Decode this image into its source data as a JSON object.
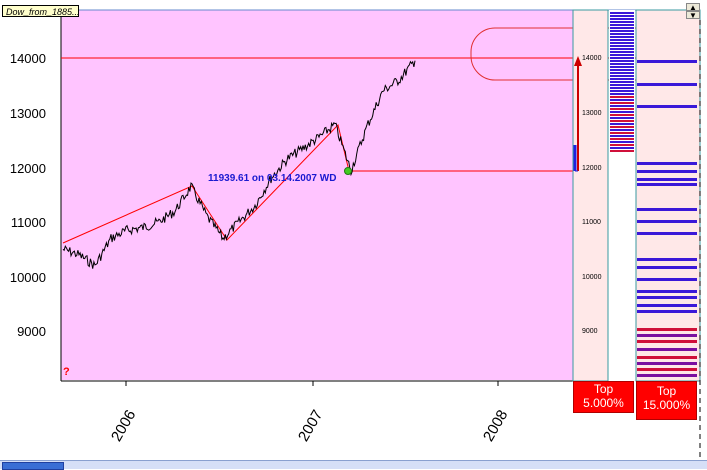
{
  "window": {
    "tab_label": "Dow_from_1885..."
  },
  "scroll": {
    "up_icon": "▲",
    "down_icon": "▼"
  },
  "main_chart": {
    "y_ticks": [
      "14000",
      "13000",
      "12000",
      "11000",
      "10000",
      "9000"
    ],
    "x_ticks": [
      "2006",
      "2007",
      "2008"
    ],
    "question_mark": "?",
    "annotation": "11939.61 on 03.14.2007 WD"
  },
  "profile_panel": {
    "y_ticks": [
      "14000",
      "13000",
      "12000",
      "11000",
      "10000",
      "9000"
    ],
    "top_left": {
      "label": "Top",
      "value": "5.000%"
    },
    "top_right": {
      "label": "Top",
      "value": "15.000%"
    }
  },
  "colors": {
    "chart_background": "#ffc4ff",
    "panel_background": "#ffe8e8",
    "price_line": "#000000",
    "trend_line": "#ff0000",
    "annotation": "#1a1ad0",
    "bar_blue": "#3a18d8",
    "bar_purple": "#7a10a0",
    "bar_red": "#d0103a",
    "top_box": "#ff0000"
  },
  "chart_data": {
    "type": "line",
    "title": "",
    "xlabel": "",
    "ylabel": "",
    "ylim": [
      8200,
      14800
    ],
    "x_ticks": [
      "2006",
      "2007",
      "2008"
    ],
    "series": [
      {
        "x": [
          "2005-09",
          "2005-10",
          "2005-11",
          "2005-12",
          "2006-01",
          "2006-02",
          "2006-03",
          "2006-04",
          "2006-05",
          "2006-06",
          "2006-07",
          "2006-08",
          "2006-09",
          "2006-10",
          "2006-11",
          "2006-12",
          "2007-01",
          "2007-02",
          "2007-03",
          "2007-04",
          "2007-05",
          "2007-06",
          "2007-07"
        ],
        "values": [
          10500,
          10400,
          10200,
          10700,
          10850,
          10900,
          11000,
          11200,
          11650,
          11100,
          10700,
          11000,
          11300,
          11800,
          12150,
          12350,
          12550,
          12780,
          11940,
          12750,
          13400,
          13600,
          13950
        ]
      }
    ],
    "trend_lines": [
      {
        "from": [
          "2005-09",
          10600
        ],
        "to": [
          "2006-05",
          11650
        ]
      },
      {
        "from": [
          "2006-05",
          11650
        ],
        "to": [
          "2006-07",
          10700
        ]
      },
      {
        "from": [
          "2006-07",
          10700
        ],
        "to": [
          "2007-02",
          12780
        ]
      },
      {
        "from": [
          "2007-02",
          12780
        ],
        "to": [
          "2007-03",
          11940
        ]
      }
    ],
    "horizontal_lines": [
      14000,
      11939.61
    ],
    "marked_point": {
      "x": "2007-03-14",
      "y": 11939.61
    }
  }
}
